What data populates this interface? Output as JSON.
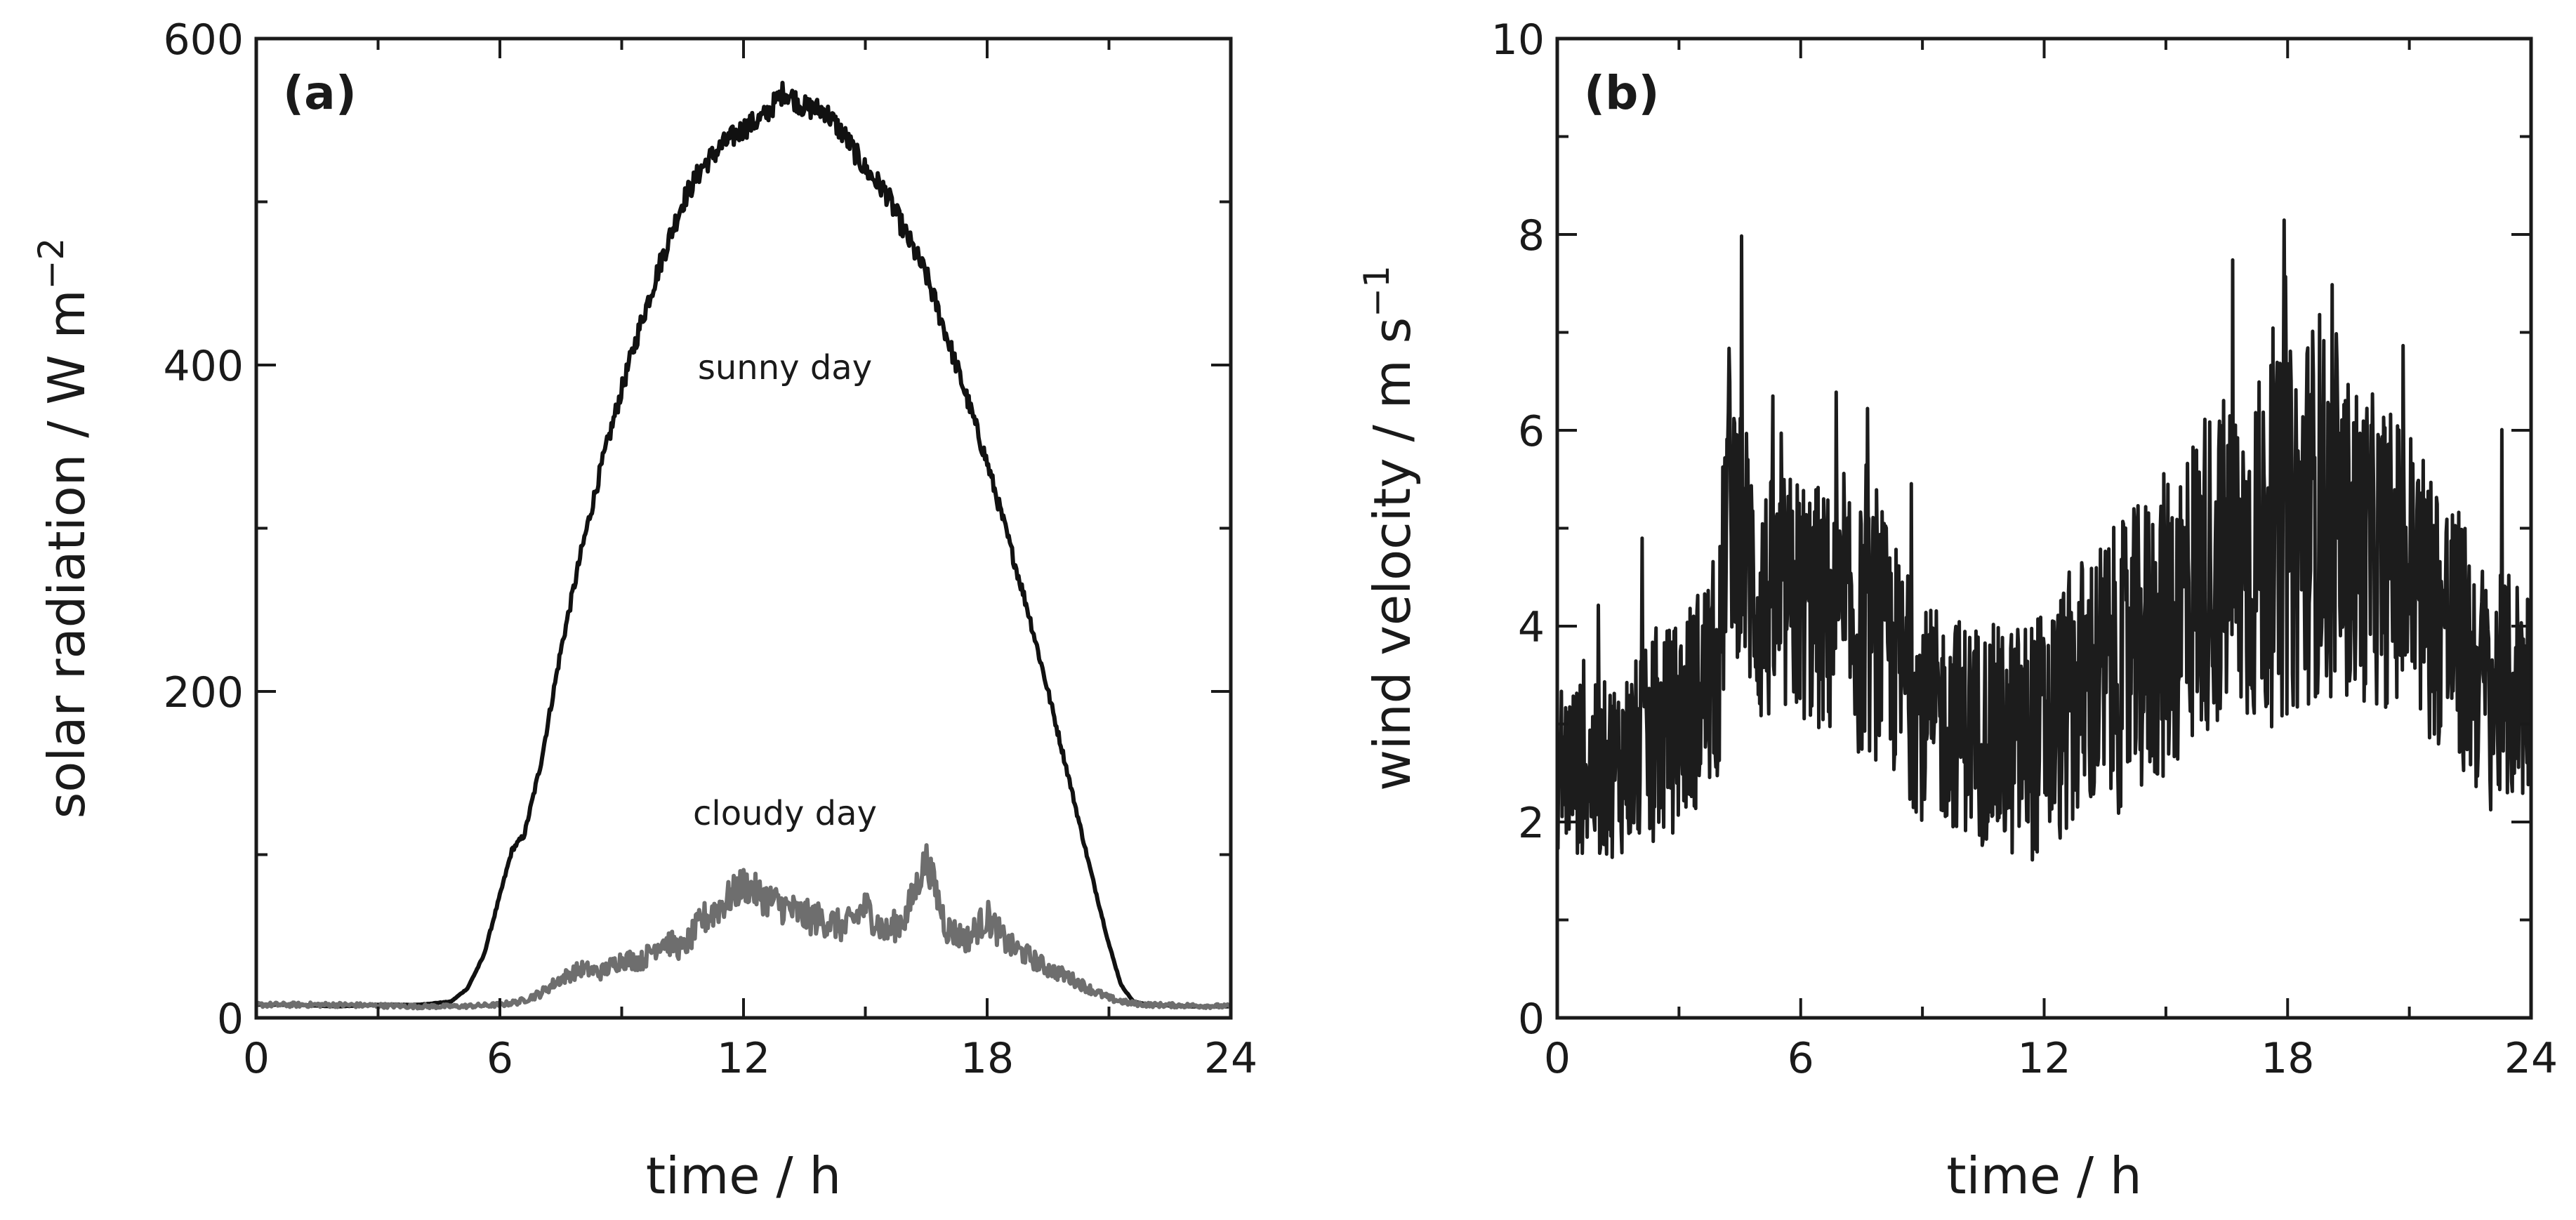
{
  "chart_data": [
    {
      "type": "line",
      "panel_label": "(a)",
      "xlabel": "time / h",
      "ylabel": "solar radiation / W m",
      "ylabel_exponent": "−2",
      "xlim": [
        0,
        24
      ],
      "ylim": [
        0,
        600
      ],
      "xticks": [
        0,
        6,
        12,
        18,
        24
      ],
      "xtick_labels": [
        "0",
        "6",
        "12",
        "18",
        "24"
      ],
      "yticks": [
        0,
        200,
        400,
        600
      ],
      "ytick_labels": [
        "0",
        "200",
        "400",
        "600"
      ],
      "x_minor_step": 3,
      "y_minor_step": 100,
      "series": [
        {
          "name": "sunny day",
          "color": "#111111",
          "x": [
            0,
            1,
            2,
            3,
            4,
            4.8,
            5.2,
            5.6,
            6.0,
            6.3,
            6.6,
            7.0,
            7.5,
            8,
            8.5,
            9,
            9.5,
            10,
            10.5,
            11,
            11.5,
            12,
            12.5,
            13,
            13.5,
            14,
            14.5,
            15,
            15.5,
            16,
            16.5,
            17,
            17.5,
            18,
            18.5,
            19,
            19.5,
            20,
            20.5,
            21,
            21.3,
            21.6,
            22,
            23,
            24
          ],
          "y": [
            8,
            8,
            7,
            8,
            8,
            10,
            18,
            38,
            75,
            103,
            112,
            155,
            225,
            285,
            338,
            385,
            428,
            466,
            500,
            522,
            535,
            545,
            552,
            568,
            558,
            556,
            540,
            520,
            506,
            480,
            455,
            418,
            380,
            340,
            295,
            250,
            200,
            148,
            95,
            45,
            20,
            10,
            8,
            7,
            7
          ],
          "annotation": "sunny day"
        },
        {
          "name": "cloudy day",
          "color": "#6e6e6e",
          "x": [
            0,
            2,
            4,
            5,
            6,
            6.5,
            7,
            7.5,
            8,
            8.5,
            9,
            9.5,
            10,
            10.5,
            11,
            11.5,
            12,
            12.5,
            13,
            13.5,
            14,
            14.5,
            15,
            15.5,
            16,
            16.5,
            17,
            17.5,
            18,
            18.5,
            19,
            19.5,
            20,
            20.5,
            21,
            21.5,
            22,
            24
          ],
          "y": [
            8,
            8,
            7,
            7,
            8,
            10,
            15,
            24,
            30,
            28,
            36,
            35,
            48,
            42,
            60,
            70,
            82,
            74,
            68,
            62,
            60,
            55,
            68,
            52,
            62,
            98,
            55,
            48,
            62,
            45,
            38,
            30,
            25,
            18,
            12,
            9,
            8,
            7
          ],
          "annotation": "cloudy day"
        }
      ]
    },
    {
      "type": "line",
      "panel_label": "(b)",
      "xlabel": "time / h",
      "ylabel": "wind velocity / m s",
      "ylabel_exponent": "−1",
      "xlim": [
        0,
        24
      ],
      "ylim": [
        0,
        10
      ],
      "xticks": [
        0,
        6,
        12,
        18,
        24
      ],
      "xtick_labels": [
        "0",
        "6",
        "12",
        "18",
        "24"
      ],
      "yticks": [
        0,
        2,
        4,
        6,
        8,
        10
      ],
      "ytick_labels": [
        "0",
        "2",
        "4",
        "6",
        "8",
        "10"
      ],
      "x_minor_step": 3,
      "y_minor_step": 1,
      "series": [
        {
          "name": "wind velocity",
          "color": "#1c1c1c",
          "x": [
            0,
            1,
            2,
            3,
            4,
            4.2,
            5,
            6,
            7,
            8,
            9,
            10,
            11,
            12,
            13,
            14,
            15,
            16,
            17,
            18,
            18.8,
            19,
            20,
            21,
            22,
            23,
            24
          ],
          "y": [
            2.6,
            2.5,
            2.7,
            3.0,
            3.6,
            5.5,
            4.2,
            4.3,
            4.0,
            3.9,
            3.1,
            3.0,
            2.8,
            2.9,
            3.4,
            3.6,
            4.0,
            4.6,
            4.7,
            4.9,
            5.3,
            5.0,
            4.8,
            4.6,
            4.0,
            3.3,
            3.4
          ],
          "noise_amplitude": [
            0.9,
            0.9,
            1.0,
            1.1,
            1.2,
            1.5,
            1.3,
            1.3,
            1.3,
            1.3,
            1.1,
            1.1,
            1.2,
            1.3,
            1.4,
            1.5,
            1.6,
            1.7,
            1.8,
            1.9,
            2.0,
            1.8,
            1.6,
            1.5,
            1.4,
            1.2,
            1.2
          ]
        }
      ]
    }
  ]
}
